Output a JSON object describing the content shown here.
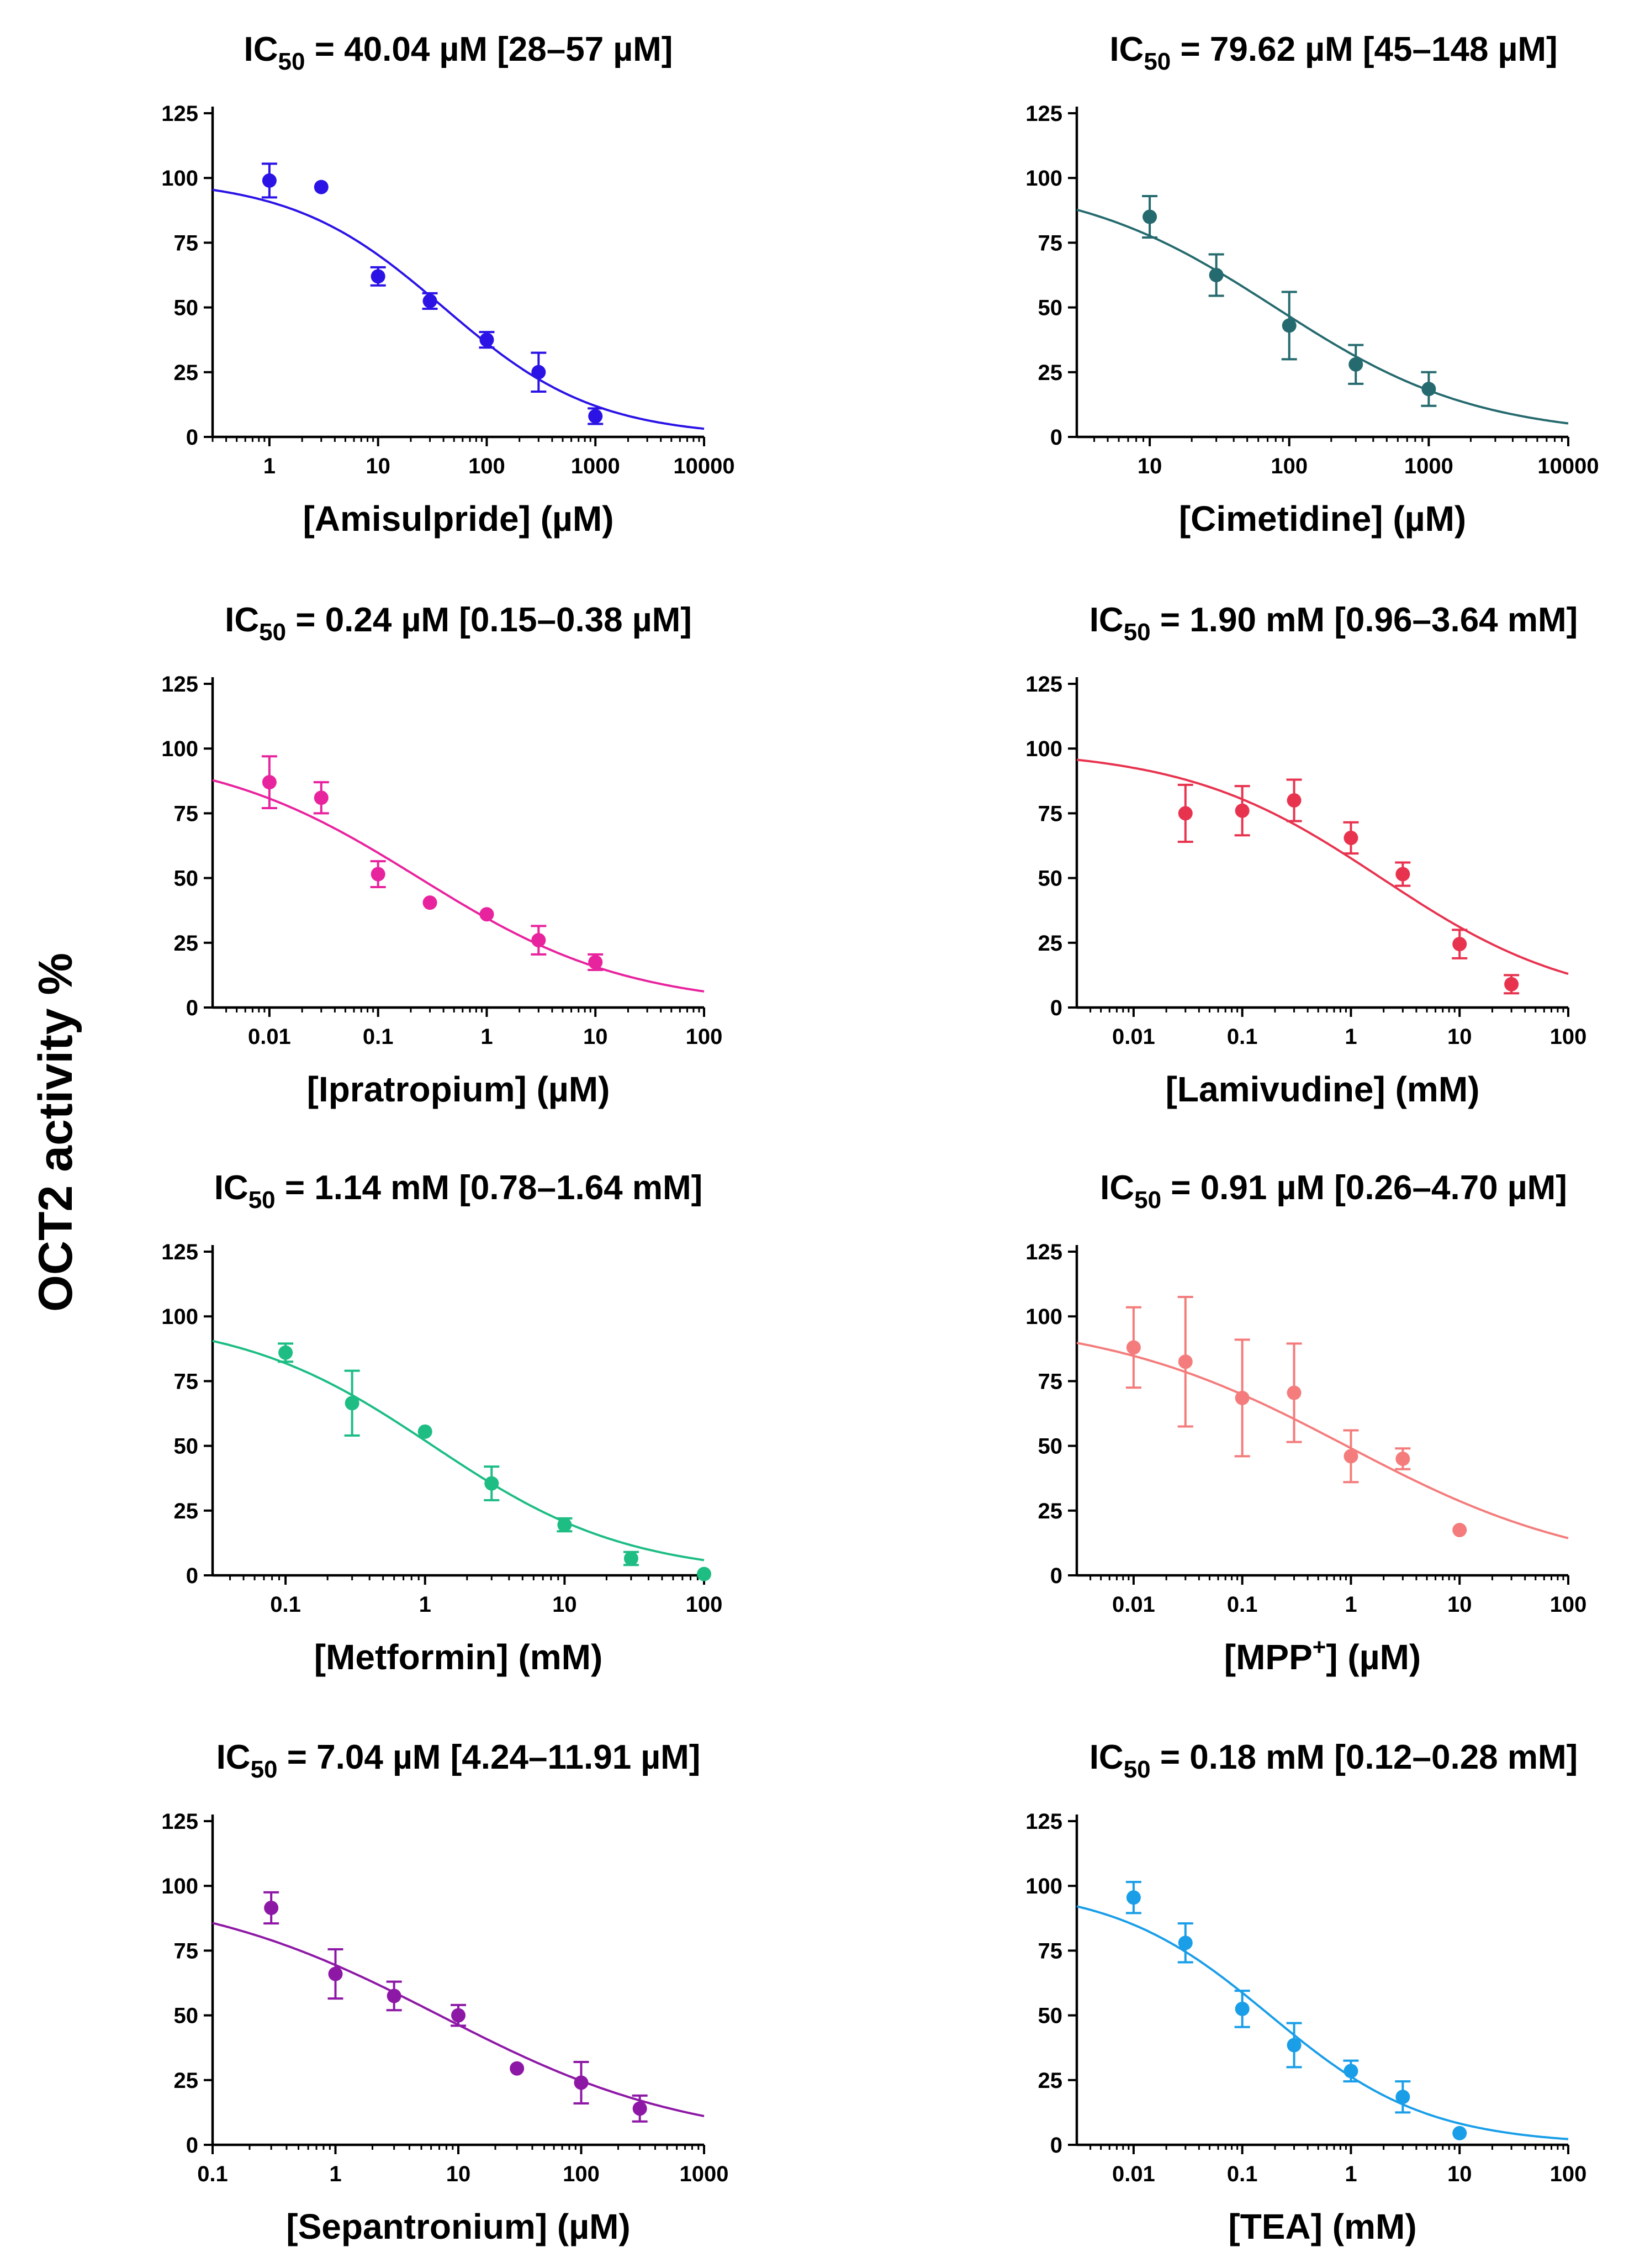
{
  "y_axis_label": "OCT2 activity %",
  "chart_data": [
    {
      "type": "scatter",
      "title": {
        "prefix": "IC",
        "sub": "50",
        "text": " = 40.04 µM [28–57 µM]"
      },
      "xlabel": {
        "pre": "[Amisulpride] (µM)",
        "sup": "",
        "post": ""
      },
      "color": "#2b13e6",
      "xlog": true,
      "xlim": [
        0.3,
        10000
      ],
      "ylim": [
        0,
        125
      ],
      "xticks": [
        1,
        10,
        100,
        1000,
        10000
      ],
      "xtick_labels": [
        "1",
        "10",
        "100",
        "1000",
        "10000"
      ],
      "yticks": [
        0,
        25,
        50,
        75,
        100,
        125
      ],
      "ytick_labels": [
        "0",
        "25",
        "50",
        "75",
        "100",
        "125"
      ],
      "x": [
        1,
        3,
        10,
        30,
        100,
        300,
        1000
      ],
      "y": [
        99,
        96.5,
        62,
        52.5,
        37.5,
        25,
        8
      ],
      "err": [
        6.5,
        0,
        3.5,
        3,
        3,
        7.5,
        3
      ],
      "fit": {
        "top": 100,
        "bottom": 0,
        "ic50": 40.04,
        "hill": 0.62
      }
    },
    {
      "type": "scatter",
      "title": {
        "prefix": "IC",
        "sub": "50",
        "text": " = 79.62 µM [45–148 µM]"
      },
      "xlabel": {
        "pre": "[Cimetidine] (µM)",
        "sup": "",
        "post": ""
      },
      "color": "#256a6e",
      "xlog": true,
      "xlim": [
        3,
        10000
      ],
      "ylim": [
        0,
        125
      ],
      "xticks": [
        10,
        100,
        1000,
        10000
      ],
      "xtick_labels": [
        "10",
        "100",
        "1000",
        "10000"
      ],
      "yticks": [
        0,
        25,
        50,
        75,
        100,
        125
      ],
      "ytick_labels": [
        "0",
        "25",
        "50",
        "75",
        "100",
        "125"
      ],
      "x": [
        10,
        30,
        100,
        300,
        1000
      ],
      "y": [
        85,
        62.5,
        43,
        28,
        18.5
      ],
      "err": [
        8,
        8,
        13,
        7.5,
        6.5
      ],
      "fit": {
        "top": 100,
        "bottom": 0,
        "ic50": 79.62,
        "hill": 0.6
      }
    },
    {
      "type": "scatter",
      "title": {
        "prefix": "IC",
        "sub": "50",
        "text": " = 0.24 µM [0.15–0.38 µM]"
      },
      "xlabel": {
        "pre": "[Ipratropium] (µM)",
        "sup": "",
        "post": ""
      },
      "color": "#e8239e",
      "xlog": true,
      "xlim": [
        0.003,
        100
      ],
      "ylim": [
        0,
        125
      ],
      "xticks": [
        0.01,
        0.1,
        1,
        10,
        100
      ],
      "xtick_labels": [
        "0.01",
        "0.1",
        "1",
        "10",
        "100"
      ],
      "yticks": [
        0,
        25,
        50,
        75,
        100,
        125
      ],
      "ytick_labels": [
        "0",
        "25",
        "50",
        "75",
        "100",
        "125"
      ],
      "x": [
        0.01,
        0.03,
        0.1,
        0.3,
        1,
        3,
        10
      ],
      "y": [
        87,
        81,
        51.5,
        40.5,
        36,
        26,
        17.5
      ],
      "err": [
        10,
        6,
        5,
        0,
        0,
        5.5,
        3
      ],
      "fit": {
        "top": 100,
        "bottom": 0,
        "ic50": 0.24,
        "hill": 0.45
      }
    },
    {
      "type": "scatter",
      "title": {
        "prefix": "IC",
        "sub": "50",
        "text": " = 1.90 mM [0.96–3.64 mM]"
      },
      "xlabel": {
        "pre": "[Lamivudine] (mM)",
        "sup": "",
        "post": ""
      },
      "color": "#e8334f",
      "xlog": true,
      "xlim": [
        0.003,
        100
      ],
      "ylim": [
        0,
        125
      ],
      "xticks": [
        0.01,
        0.1,
        1,
        10,
        100
      ],
      "xtick_labels": [
        "0.01",
        "0.1",
        "1",
        "10",
        "100"
      ],
      "yticks": [
        0,
        25,
        50,
        75,
        100,
        125
      ],
      "ytick_labels": [
        "0",
        "25",
        "50",
        "75",
        "100",
        "125"
      ],
      "x": [
        0.03,
        0.1,
        0.3,
        1,
        3,
        10,
        30
      ],
      "y": [
        75,
        76,
        80,
        65.5,
        51.5,
        24.5,
        9
      ],
      "err": [
        11,
        9.5,
        8,
        6,
        4.5,
        5.5,
        3.5
      ],
      "fit": {
        "top": 100,
        "bottom": 0,
        "ic50": 1.9,
        "hill": 0.48
      }
    },
    {
      "type": "scatter",
      "title": {
        "prefix": "IC",
        "sub": "50",
        "text": " = 1.14 mM [0.78–1.64 mM]"
      },
      "xlabel": {
        "pre": "[Metformin] (mM)",
        "sup": "",
        "post": ""
      },
      "color": "#1dbd84",
      "xlog": true,
      "xlim": [
        0.03,
        100
      ],
      "ylim": [
        0,
        125
      ],
      "xticks": [
        0.1,
        1,
        10,
        100
      ],
      "xtick_labels": [
        "0.1",
        "1",
        "10",
        "100"
      ],
      "yticks": [
        0,
        25,
        50,
        75,
        100,
        125
      ],
      "ytick_labels": [
        "0",
        "25",
        "50",
        "75",
        "100",
        "125"
      ],
      "x": [
        0.1,
        0.3,
        1,
        3,
        10,
        30,
        100
      ],
      "y": [
        86,
        66.5,
        55.5,
        35.5,
        19.5,
        6.5,
        0.5
      ],
      "err": [
        3.5,
        12.5,
        0,
        6.5,
        2.5,
        2.5,
        0
      ],
      "fit": {
        "top": 100,
        "bottom": 0,
        "ic50": 1.14,
        "hill": 0.62
      }
    },
    {
      "type": "scatter",
      "title": {
        "prefix": "IC",
        "sub": "50",
        "text": " = 0.91 µM [0.26–4.70 µM]"
      },
      "xlabel": {
        "pre": "[MPP",
        "sup": "+",
        "post": "] (µM)"
      },
      "color": "#f47c7c",
      "xlog": true,
      "xlim": [
        0.003,
        100
      ],
      "ylim": [
        0,
        125
      ],
      "xticks": [
        0.01,
        0.1,
        1,
        10,
        100
      ],
      "xtick_labels": [
        "0.01",
        "0.1",
        "1",
        "10",
        "100"
      ],
      "yticks": [
        0,
        25,
        50,
        75,
        100,
        125
      ],
      "ytick_labels": [
        "0",
        "25",
        "50",
        "75",
        "100",
        "125"
      ],
      "x": [
        0.01,
        0.03,
        0.1,
        0.3,
        1,
        3,
        10
      ],
      "y": [
        88,
        82.5,
        68.5,
        70.5,
        46,
        45,
        17.5
      ],
      "err": [
        15.5,
        25,
        22.5,
        19,
        10,
        4,
        0
      ],
      "fit": {
        "top": 100,
        "bottom": 0,
        "ic50": 0.91,
        "hill": 0.38
      }
    },
    {
      "type": "scatter",
      "title": {
        "prefix": "IC",
        "sub": "50",
        "text": " = 7.04 µM [4.24–11.91 µM]"
      },
      "xlabel": {
        "pre": "[Sepantronium] (µM)",
        "sup": "",
        "post": ""
      },
      "color": "#8e18a6",
      "xlog": true,
      "xlim": [
        0.1,
        1000
      ],
      "ylim": [
        0,
        125
      ],
      "xticks": [
        0.1,
        1,
        10,
        100,
        1000
      ],
      "xtick_labels": [
        "0.1",
        "1",
        "10",
        "100",
        "1000"
      ],
      "yticks": [
        0,
        25,
        50,
        75,
        100,
        125
      ],
      "ytick_labels": [
        "0",
        "25",
        "50",
        "75",
        "100",
        "125"
      ],
      "x": [
        0.3,
        1,
        3,
        10,
        30,
        100,
        300
      ],
      "y": [
        91.5,
        66,
        57.5,
        50,
        29.5,
        24,
        14
      ],
      "err": [
        6,
        9.5,
        5.5,
        4,
        0,
        8,
        5
      ],
      "fit": {
        "top": 100,
        "bottom": 0,
        "ic50": 7.04,
        "hill": 0.42
      }
    },
    {
      "type": "scatter",
      "title": {
        "prefix": "IC",
        "sub": "50",
        "text": " = 0.18 mM [0.12–0.28 mM]"
      },
      "xlabel": {
        "pre": "[TEA] (mM)",
        "sup": "",
        "post": ""
      },
      "color": "#1a9ee8",
      "xlog": true,
      "xlim": [
        0.003,
        100
      ],
      "ylim": [
        0,
        125
      ],
      "xticks": [
        0.01,
        0.1,
        1,
        10,
        100
      ],
      "xtick_labels": [
        "0.01",
        "0.1",
        "1",
        "10",
        "100"
      ],
      "yticks": [
        0,
        25,
        50,
        75,
        100,
        125
      ],
      "ytick_labels": [
        "0",
        "25",
        "50",
        "75",
        "100",
        "125"
      ],
      "x": [
        0.01,
        0.03,
        0.1,
        0.3,
        1,
        3,
        10
      ],
      "y": [
        95.5,
        78,
        52.5,
        38.5,
        28.5,
        18.5,
        4.5
      ],
      "err": [
        6,
        7.5,
        7,
        8.5,
        4,
        6,
        0
      ],
      "fit": {
        "top": 100,
        "bottom": 0,
        "ic50": 0.18,
        "hill": 0.6
      }
    }
  ]
}
